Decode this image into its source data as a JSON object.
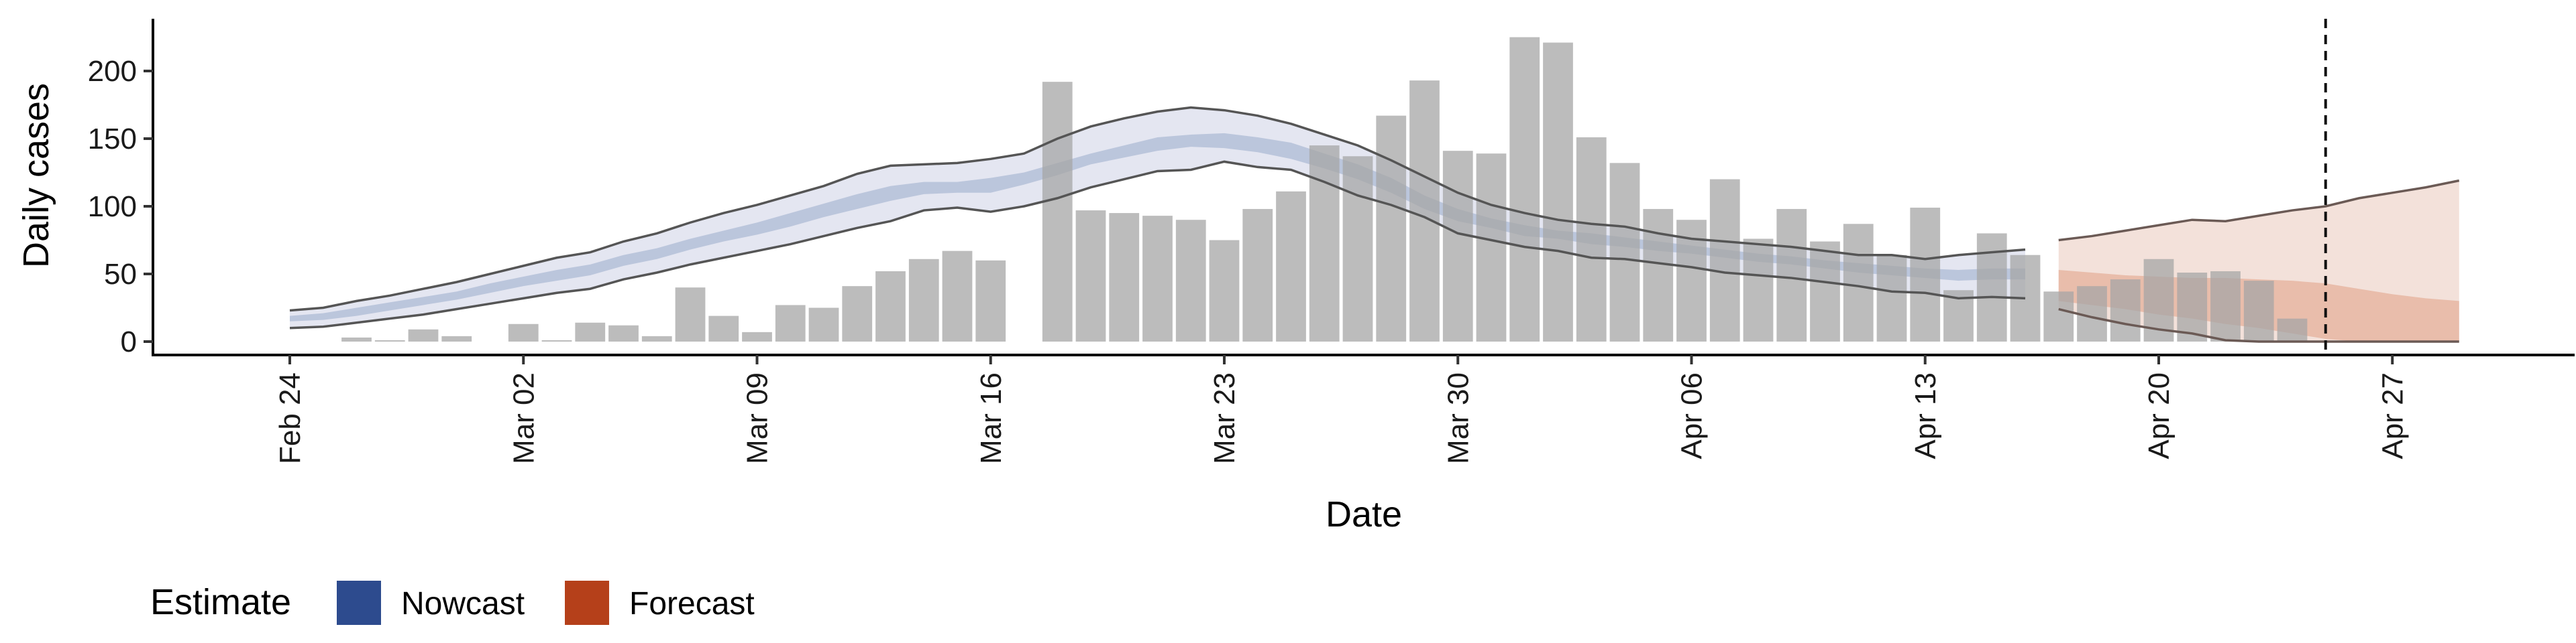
{
  "chart_data": {
    "type": "bar",
    "title": "",
    "xlabel": "Date",
    "ylabel": "Daily cases",
    "ylim": [
      -10,
      238
    ],
    "y_ticks": [
      0,
      50,
      100,
      150,
      200
    ],
    "x_tick_labels": [
      "Feb 24",
      "Mar 02",
      "Mar 09",
      "Mar 16",
      "Mar 23",
      "Mar 30",
      "Apr 06",
      "Apr 13",
      "Apr 20",
      "Apr 27"
    ],
    "x_start_date": "2020-02-24",
    "grid": false,
    "forecast_date": "2020-04-25",
    "bars": {
      "dates": [
        "2020-02-26",
        "2020-02-27",
        "2020-02-28",
        "2020-02-29",
        "2020-03-01",
        "2020-03-02",
        "2020-03-03",
        "2020-03-04",
        "2020-03-05",
        "2020-03-06",
        "2020-03-07",
        "2020-03-08",
        "2020-03-09",
        "2020-03-10",
        "2020-03-11",
        "2020-03-12",
        "2020-03-13",
        "2020-03-14",
        "2020-03-15",
        "2020-03-16",
        "2020-03-17",
        "2020-03-18",
        "2020-03-19",
        "2020-03-20",
        "2020-03-21",
        "2020-03-22",
        "2020-03-23",
        "2020-03-24",
        "2020-03-25",
        "2020-03-26",
        "2020-03-27",
        "2020-03-28",
        "2020-03-29",
        "2020-03-30",
        "2020-03-31",
        "2020-04-01",
        "2020-04-02",
        "2020-04-03",
        "2020-04-04",
        "2020-04-05",
        "2020-04-06",
        "2020-04-07",
        "2020-04-08",
        "2020-04-09",
        "2020-04-10",
        "2020-04-11",
        "2020-04-12",
        "2020-04-13",
        "2020-04-14",
        "2020-04-15",
        "2020-04-16",
        "2020-04-17",
        "2020-04-18",
        "2020-04-19",
        "2020-04-20",
        "2020-04-21",
        "2020-04-22",
        "2020-04-23",
        "2020-04-24",
        "2020-04-25"
      ],
      "values": [
        3,
        1,
        9,
        4,
        0,
        13,
        1,
        14,
        12,
        4,
        40,
        19,
        7,
        27,
        25,
        41,
        52,
        61,
        67,
        60,
        0,
        192,
        97,
        95,
        93,
        90,
        75,
        98,
        111,
        145,
        137,
        167,
        193,
        141,
        139,
        225,
        221,
        151,
        132,
        98,
        90,
        120,
        76,
        98,
        74,
        87,
        64,
        99,
        38,
        80,
        64,
        37,
        41,
        46,
        61,
        51,
        52,
        45,
        17,
        0
      ]
    },
    "series": [
      {
        "name": "Nowcast",
        "color": "#2d4b8e",
        "dates": [
          "2020-02-24",
          "2020-02-25",
          "2020-02-26",
          "2020-02-27",
          "2020-02-28",
          "2020-02-29",
          "2020-03-01",
          "2020-03-02",
          "2020-03-03",
          "2020-03-04",
          "2020-03-05",
          "2020-03-06",
          "2020-03-07",
          "2020-03-08",
          "2020-03-09",
          "2020-03-10",
          "2020-03-11",
          "2020-03-12",
          "2020-03-13",
          "2020-03-14",
          "2020-03-15",
          "2020-03-16",
          "2020-03-17",
          "2020-03-18",
          "2020-03-19",
          "2020-03-20",
          "2020-03-21",
          "2020-03-22",
          "2020-03-23",
          "2020-03-24",
          "2020-03-25",
          "2020-03-26",
          "2020-03-27",
          "2020-03-28",
          "2020-03-29",
          "2020-03-30",
          "2020-03-31",
          "2020-04-01",
          "2020-04-02",
          "2020-04-03",
          "2020-04-04",
          "2020-04-05",
          "2020-04-06",
          "2020-04-07",
          "2020-04-08",
          "2020-04-09",
          "2020-04-10",
          "2020-04-11",
          "2020-04-12",
          "2020-04-13",
          "2020-04-14",
          "2020-04-15",
          "2020-04-16"
        ],
        "lower_90": [
          10,
          11,
          14,
          17,
          20,
          24,
          28,
          32,
          36,
          39,
          46,
          51,
          57,
          62,
          67,
          72,
          78,
          84,
          89,
          97,
          99,
          96,
          100,
          106,
          114,
          120,
          126,
          127,
          133,
          129,
          127,
          118,
          108,
          101,
          92,
          80,
          75,
          70,
          67,
          62,
          61,
          58,
          55,
          51,
          49,
          47,
          44,
          41,
          37,
          36,
          32,
          33,
          32
        ],
        "upper_90": [
          23,
          25,
          30,
          34,
          39,
          44,
          50,
          56,
          62,
          66,
          74,
          80,
          88,
          95,
          101,
          108,
          115,
          124,
          130,
          131,
          132,
          135,
          139,
          150,
          159,
          165,
          170,
          173,
          171,
          167,
          161,
          153,
          145,
          134,
          122,
          110,
          101,
          95,
          90,
          87,
          85,
          80,
          76,
          74,
          72,
          70,
          67,
          64,
          64,
          61,
          64,
          66,
          68
        ],
        "lower_50": [
          15,
          16,
          19,
          23,
          27,
          31,
          36,
          41,
          45,
          49,
          56,
          61,
          68,
          74,
          79,
          85,
          92,
          98,
          104,
          109,
          110,
          110,
          116,
          123,
          131,
          136,
          141,
          144,
          143,
          140,
          135,
          128,
          120,
          110,
          98,
          89,
          84,
          78,
          76,
          72,
          70,
          67,
          65,
          62,
          59,
          57,
          54,
          51,
          49,
          47,
          45,
          46,
          46
        ],
        "upper_50": [
          19,
          21,
          25,
          29,
          33,
          37,
          43,
          48,
          53,
          57,
          64,
          69,
          76,
          82,
          88,
          95,
          102,
          109,
          115,
          118,
          118,
          121,
          125,
          132,
          139,
          145,
          151,
          153,
          154,
          151,
          147,
          139,
          131,
          121,
          108,
          98,
          91,
          86,
          82,
          80,
          77,
          74,
          71,
          68,
          65,
          63,
          60,
          58,
          56,
          54,
          53,
          54,
          54
        ]
      },
      {
        "name": "Forecast",
        "color": "#b5401a",
        "dates": [
          "2020-04-17",
          "2020-04-18",
          "2020-04-19",
          "2020-04-20",
          "2020-04-21",
          "2020-04-22",
          "2020-04-23",
          "2020-04-24",
          "2020-04-25",
          "2020-04-26",
          "2020-04-27",
          "2020-04-28",
          "2020-04-29"
        ],
        "lower_90": [
          24,
          18,
          13,
          9,
          6,
          1,
          0,
          0,
          0,
          0,
          0,
          0,
          0
        ],
        "upper_90": [
          75,
          78,
          82,
          86,
          90,
          89,
          93,
          97,
          100,
          106,
          110,
          114,
          119
        ],
        "lower_50": [
          30,
          27,
          24,
          20,
          17,
          13,
          10,
          6,
          2,
          0,
          0,
          0,
          0
        ],
        "upper_50": [
          53,
          51,
          49,
          48,
          47,
          47,
          46,
          45,
          43,
          39,
          35,
          32,
          30
        ]
      }
    ],
    "legend": {
      "title": "Estimate",
      "position": "bottom-left",
      "items": [
        {
          "label": "Nowcast",
          "color": "#2d4b8e"
        },
        {
          "label": "Forecast",
          "color": "#b5401a"
        }
      ]
    }
  }
}
